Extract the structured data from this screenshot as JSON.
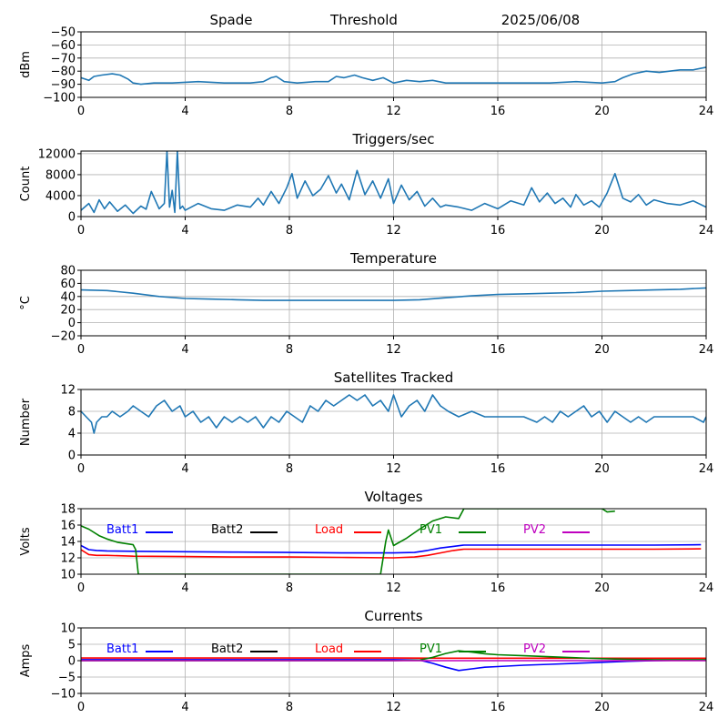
{
  "header": {
    "left": "Spade",
    "center": "Threshold",
    "right": "2025/06/08"
  },
  "colors": {
    "series": "#1f77b4",
    "grid": "#b0b0b0",
    "batt1": "#0000ff",
    "batt2": "#000000",
    "load": "#ff0000",
    "pv1": "#008000",
    "pv2": "#bf00bf"
  },
  "chart_data": [
    {
      "type": "line",
      "title": "",
      "xlabel": "",
      "ylabel": "dBm",
      "xlim": [
        0,
        24
      ],
      "ylim": [
        -100,
        -50
      ],
      "xticks": [
        0,
        4,
        8,
        12,
        16,
        20,
        24
      ],
      "yticks": [
        -100,
        -90,
        -80,
        -70,
        -60,
        -50
      ],
      "grid": true,
      "series": [
        {
          "color": "#1f77b4",
          "x": [
            0,
            0.3,
            0.5,
            0.8,
            1.2,
            1.5,
            1.8,
            2.0,
            2.3,
            2.8,
            3.5,
            4.5,
            5.5,
            6.5,
            7.0,
            7.3,
            7.5,
            7.8,
            8.3,
            9.0,
            9.5,
            9.8,
            10.1,
            10.5,
            10.8,
            11.2,
            11.6,
            12.0,
            12.5,
            13.0,
            13.5,
            14.0,
            15.0,
            16.0,
            17.0,
            18.0,
            19.0,
            20.0,
            20.5,
            20.8,
            21.2,
            21.7,
            22.2,
            22.6,
            23.0,
            23.5,
            24
          ],
          "y": [
            -85,
            -87,
            -84,
            -83,
            -82,
            -83,
            -86,
            -89,
            -90,
            -89,
            -89,
            -88,
            -89,
            -89,
            -88,
            -85,
            -84,
            -88,
            -89,
            -88,
            -88,
            -84,
            -85,
            -83,
            -85,
            -87,
            -85,
            -89,
            -87,
            -88,
            -87,
            -89,
            -89,
            -89,
            -89,
            -89,
            -88,
            -89,
            -88,
            -85,
            -82,
            -80,
            -81,
            -80,
            -79,
            -79,
            -77
          ]
        }
      ]
    },
    {
      "type": "line",
      "title": "Triggers/sec",
      "xlabel": "",
      "ylabel": "Count",
      "xlim": [
        0,
        24
      ],
      "ylim": [
        0,
        12500
      ],
      "xticks": [
        0,
        4,
        8,
        12,
        16,
        20,
        24
      ],
      "yticks": [
        0,
        4000,
        8000,
        12000
      ],
      "grid": true,
      "series": [
        {
          "color": "#1f77b4",
          "x": [
            0,
            0.3,
            0.5,
            0.7,
            0.9,
            1.1,
            1.4,
            1.7,
            2.0,
            2.3,
            2.5,
            2.7,
            3.0,
            3.2,
            3.3,
            3.4,
            3.5,
            3.6,
            3.7,
            3.8,
            3.9,
            4.0,
            4.5,
            5.0,
            5.5,
            6.0,
            6.5,
            6.8,
            7.0,
            7.3,
            7.6,
            7.9,
            8.1,
            8.3,
            8.6,
            8.9,
            9.2,
            9.5,
            9.8,
            10.0,
            10.3,
            10.6,
            10.9,
            11.2,
            11.5,
            11.8,
            12.0,
            12.3,
            12.6,
            12.9,
            13.2,
            13.5,
            13.8,
            14.0,
            14.5,
            15.0,
            15.5,
            16.0,
            16.5,
            17.0,
            17.3,
            17.6,
            17.9,
            18.2,
            18.5,
            18.8,
            19.0,
            19.3,
            19.6,
            19.9,
            20.2,
            20.5,
            20.8,
            21.1,
            21.4,
            21.7,
            22.0,
            22.5,
            23.0,
            23.5,
            24
          ],
          "y": [
            1200,
            2500,
            800,
            3200,
            1500,
            2800,
            1000,
            2200,
            600,
            2000,
            1400,
            4800,
            1500,
            2500,
            12500,
            1800,
            5000,
            800,
            12500,
            1500,
            2000,
            1200,
            2500,
            1500,
            1200,
            2200,
            1800,
            3500,
            2200,
            4800,
            2500,
            5500,
            8200,
            3500,
            6800,
            4000,
            5200,
            7800,
            4500,
            6200,
            3200,
            8800,
            4200,
            6800,
            3500,
            7200,
            2500,
            6000,
            3200,
            4800,
            2000,
            3500,
            1800,
            2200,
            1800,
            1200,
            2500,
            1500,
            3000,
            2200,
            5500,
            2800,
            4500,
            2500,
            3500,
            1800,
            4200,
            2200,
            3000,
            1800,
            4500,
            8200,
            3500,
            2800,
            4200,
            2200,
            3200,
            2500,
            2200,
            3000,
            1800
          ]
        }
      ]
    },
    {
      "type": "line",
      "title": "Temperature",
      "xlabel": "",
      "ylabel": "°C",
      "xlim": [
        0,
        24
      ],
      "ylim": [
        -20,
        80
      ],
      "xticks": [
        0,
        4,
        8,
        12,
        16,
        20,
        24
      ],
      "yticks": [
        -20,
        0,
        20,
        40,
        60,
        80
      ],
      "grid": true,
      "series": [
        {
          "color": "#1f77b4",
          "x": [
            0,
            1,
            2,
            3,
            4,
            5,
            6,
            7,
            8,
            9,
            10,
            11,
            12,
            13,
            14,
            15,
            16,
            17,
            18,
            19,
            20,
            21,
            22,
            23,
            24
          ],
          "y": [
            50,
            49,
            45,
            40,
            37,
            36,
            35,
            34,
            34,
            34,
            34,
            34,
            34,
            35,
            38,
            41,
            43,
            44,
            45,
            46,
            48,
            49,
            50,
            51,
            53
          ]
        }
      ]
    },
    {
      "type": "line",
      "title": "Satellites Tracked",
      "xlabel": "",
      "ylabel": "Number",
      "xlim": [
        0,
        24
      ],
      "ylim": [
        0,
        12
      ],
      "xticks": [
        0,
        4,
        8,
        12,
        16,
        20,
        24
      ],
      "yticks": [
        0,
        4,
        8,
        12
      ],
      "grid": true,
      "series": [
        {
          "color": "#1f77b4",
          "x": [
            0,
            0.2,
            0.4,
            0.5,
            0.6,
            0.8,
            1.0,
            1.2,
            1.5,
            1.8,
            2.0,
            2.3,
            2.6,
            2.9,
            3.2,
            3.5,
            3.8,
            4.0,
            4.3,
            4.6,
            4.9,
            5.2,
            5.5,
            5.8,
            6.1,
            6.4,
            6.7,
            7.0,
            7.3,
            7.6,
            7.9,
            8.2,
            8.5,
            8.8,
            9.1,
            9.4,
            9.7,
            10.0,
            10.3,
            10.6,
            10.9,
            11.2,
            11.5,
            11.8,
            12.0,
            12.3,
            12.6,
            12.9,
            13.2,
            13.5,
            13.8,
            14.1,
            14.5,
            15.0,
            15.5,
            16.0,
            16.5,
            17.0,
            17.5,
            17.8,
            18.1,
            18.4,
            18.7,
            19.0,
            19.3,
            19.6,
            19.9,
            20.2,
            20.5,
            20.8,
            21.1,
            21.4,
            21.7,
            22.0,
            22.5,
            23.0,
            23.5,
            23.9,
            24
          ],
          "y": [
            8,
            7,
            6,
            4,
            6,
            7,
            7,
            8,
            7,
            8,
            9,
            8,
            7,
            9,
            10,
            8,
            9,
            7,
            8,
            6,
            7,
            5,
            7,
            6,
            7,
            6,
            7,
            5,
            7,
            6,
            8,
            7,
            6,
            9,
            8,
            10,
            9,
            10,
            11,
            10,
            11,
            9,
            10,
            8,
            11,
            7,
            9,
            10,
            8,
            11,
            9,
            8,
            7,
            8,
            7,
            7,
            7,
            7,
            6,
            7,
            6,
            8,
            7,
            8,
            9,
            7,
            8,
            6,
            8,
            7,
            6,
            7,
            6,
            7,
            7,
            7,
            7,
            6,
            7
          ]
        }
      ]
    },
    {
      "type": "line",
      "title": "Voltages",
      "xlabel": "",
      "ylabel": "Volts",
      "xlim": [
        0,
        24
      ],
      "ylim": [
        10,
        18
      ],
      "xticks": [
        0,
        4,
        8,
        12,
        16,
        20,
        24
      ],
      "yticks": [
        10,
        12,
        14,
        16,
        18
      ],
      "grid": true,
      "legend": "top, single row",
      "series": [
        {
          "name": "Batt1",
          "color": "#0000ff",
          "x": [
            0,
            0.3,
            0.6,
            1,
            2,
            4,
            6,
            8,
            10,
            12,
            12.8,
            13.3,
            13.8,
            14.3,
            14.7,
            15.5,
            16,
            18,
            20,
            22,
            23.8
          ],
          "y": [
            13.5,
            13.0,
            12.9,
            12.85,
            12.8,
            12.75,
            12.7,
            12.65,
            12.6,
            12.6,
            12.65,
            12.9,
            13.2,
            13.4,
            13.55,
            13.55,
            13.55,
            13.55,
            13.55,
            13.55,
            13.6
          ]
        },
        {
          "name": "Batt2",
          "color": "#000000",
          "x": [],
          "y": []
        },
        {
          "name": "Load",
          "color": "#ff0000",
          "x": [
            0,
            0.3,
            0.6,
            1,
            2,
            4,
            6,
            8,
            10,
            12,
            12.8,
            13.3,
            13.8,
            14.3,
            14.7,
            15.5,
            16,
            18,
            20,
            22,
            23.8
          ],
          "y": [
            13.0,
            12.4,
            12.3,
            12.3,
            12.2,
            12.15,
            12.1,
            12.1,
            12.05,
            12.0,
            12.1,
            12.3,
            12.6,
            12.9,
            13.05,
            13.05,
            13.05,
            13.05,
            13.05,
            13.05,
            13.1
          ]
        },
        {
          "name": "PV1",
          "color": "#008000",
          "x": [
            0,
            0.3,
            0.7,
            1.0,
            1.4,
            1.8,
            2.0,
            2.1,
            2.2,
            11.5,
            11.7,
            11.8,
            12.0,
            12.5,
            13.0,
            13.5,
            14.0,
            14.5,
            14.7,
            20.0,
            20.2,
            20.5
          ],
          "y": [
            15.9,
            15.5,
            14.7,
            14.3,
            13.9,
            13.7,
            13.6,
            13.0,
            10.0,
            10.0,
            14.0,
            15.4,
            13.5,
            14.4,
            15.5,
            16.5,
            17.0,
            16.8,
            18.0,
            18.0,
            17.6,
            17.7
          ]
        },
        {
          "name": "PV2",
          "color": "#bf00bf",
          "x": [],
          "y": []
        }
      ]
    },
    {
      "type": "line",
      "title": "Currents",
      "xlabel": "",
      "ylabel": "Amps",
      "xlim": [
        0,
        24
      ],
      "ylim": [
        -10,
        10
      ],
      "xticks": [
        0,
        4,
        8,
        12,
        16,
        20,
        24
      ],
      "yticks": [
        -10,
        -5,
        0,
        5,
        10
      ],
      "grid": true,
      "legend": "top, single row",
      "series": [
        {
          "name": "Batt1",
          "color": "#0000ff",
          "x": [
            0,
            2,
            4,
            6,
            8,
            10,
            12,
            13,
            13.5,
            14.0,
            14.5,
            15.0,
            15.5,
            16.0,
            17,
            18,
            19,
            20,
            21,
            22,
            23,
            24
          ],
          "y": [
            0.3,
            0.3,
            0.3,
            0.3,
            0.3,
            0.3,
            0.3,
            0.2,
            -0.8,
            -2.0,
            -3.0,
            -2.5,
            -2.0,
            -1.8,
            -1.4,
            -1.1,
            -0.8,
            -0.5,
            -0.2,
            0.0,
            0.1,
            0.2
          ]
        },
        {
          "name": "Batt2",
          "color": "#000000",
          "x": [],
          "y": []
        },
        {
          "name": "Load",
          "color": "#ff0000",
          "x": [
            0,
            2,
            4,
            6,
            8,
            10,
            12,
            14,
            16,
            18,
            20,
            22,
            24
          ],
          "y": [
            0.8,
            0.8,
            0.8,
            0.8,
            0.8,
            0.8,
            0.8,
            0.75,
            0.75,
            0.75,
            0.75,
            0.75,
            0.75
          ]
        },
        {
          "name": "PV1",
          "color": "#008000",
          "x": [
            0,
            12,
            13.0,
            13.5,
            14.0,
            14.5,
            15.0,
            15.5,
            16.0,
            17,
            18,
            19,
            20,
            21,
            22,
            23,
            24
          ],
          "y": [
            0,
            0,
            0.2,
            1.0,
            2.2,
            3.0,
            2.6,
            2.1,
            1.8,
            1.5,
            1.2,
            0.9,
            0.6,
            0.4,
            0.3,
            0.3,
            0.3
          ]
        },
        {
          "name": "PV2",
          "color": "#bf00bf",
          "x": [
            0,
            24
          ],
          "y": [
            0,
            0
          ]
        }
      ]
    }
  ]
}
